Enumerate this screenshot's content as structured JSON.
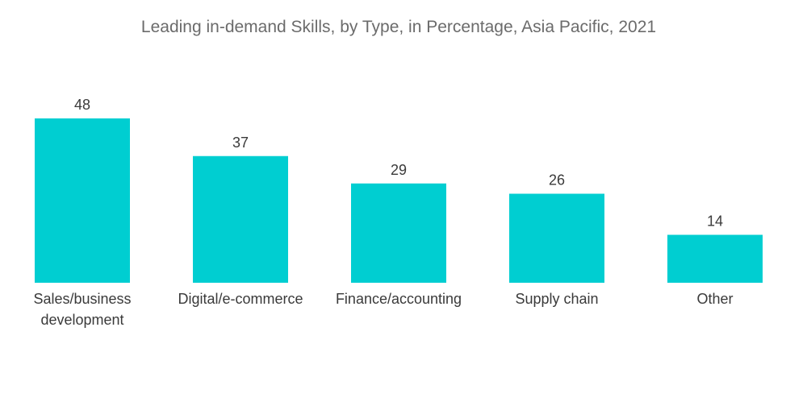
{
  "chart_data": {
    "type": "bar",
    "title": "Leading in-demand Skills, by Type, in Percentage, Asia Pacific, 2021",
    "xlabel": "",
    "ylabel": "",
    "categories": [
      [
        "Sales/business",
        "development"
      ],
      [
        "Digital/e-commerce"
      ],
      [
        "Finance/accounting"
      ],
      [
        "Supply chain"
      ],
      [
        "Other"
      ]
    ],
    "values": [
      48,
      37,
      29,
      26,
      14
    ],
    "ylim": [
      0,
      48
    ],
    "grid": false,
    "legend": "none",
    "bar_color": "#00ced1"
  }
}
